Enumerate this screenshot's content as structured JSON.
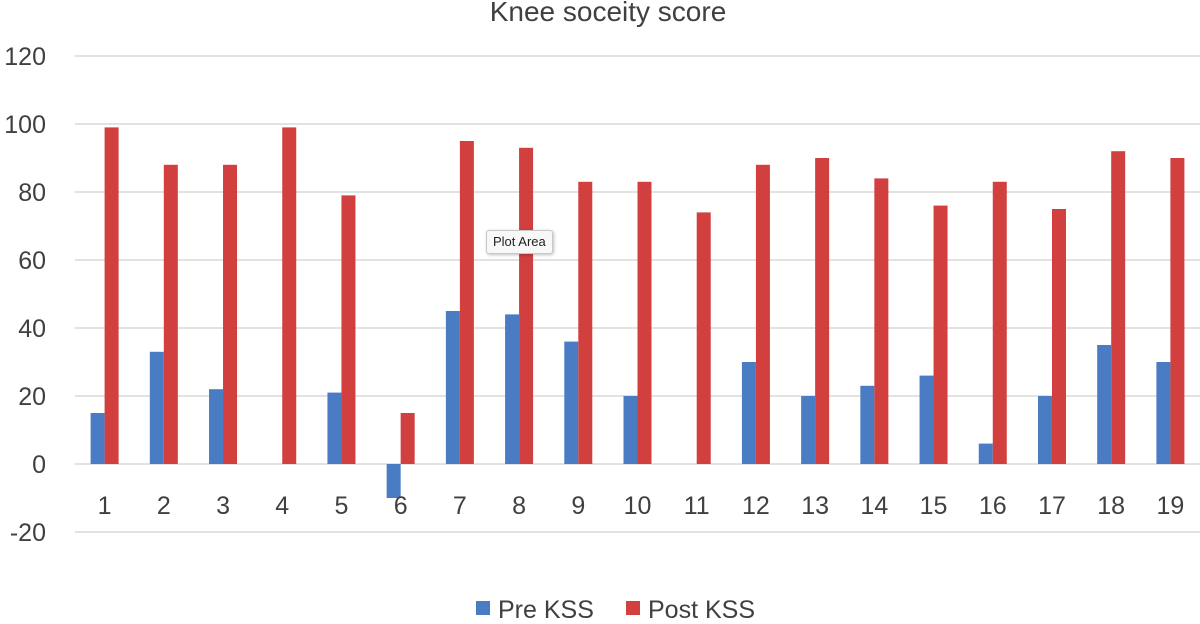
{
  "chart_data": {
    "type": "bar",
    "title": "Knee soceity score",
    "xlabel": "",
    "ylabel": "",
    "categories": [
      "1",
      "2",
      "3",
      "4",
      "5",
      "6",
      "7",
      "8",
      "9",
      "10",
      "11",
      "12",
      "13",
      "14",
      "15",
      "16",
      "17",
      "18",
      "19"
    ],
    "series": [
      {
        "name": "Pre KSS",
        "color": "#4a7cc4",
        "values": [
          15,
          33,
          22,
          0,
          21,
          -10,
          45,
          44,
          36,
          20,
          0,
          30,
          20,
          23,
          26,
          6,
          20,
          35,
          30
        ]
      },
      {
        "name": "Post KSS",
        "color": "#d13f3f",
        "values": [
          99,
          88,
          88,
          99,
          79,
          15,
          95,
          93,
          83,
          83,
          74,
          88,
          90,
          84,
          76,
          83,
          75,
          92,
          90
        ]
      }
    ],
    "ylim": [
      -20,
      120
    ],
    "yticks": [
      -20,
      0,
      20,
      40,
      60,
      80,
      100,
      120
    ],
    "grid": true,
    "legend_position": "bottom"
  },
  "tooltip": {
    "label": "Plot Area"
  }
}
